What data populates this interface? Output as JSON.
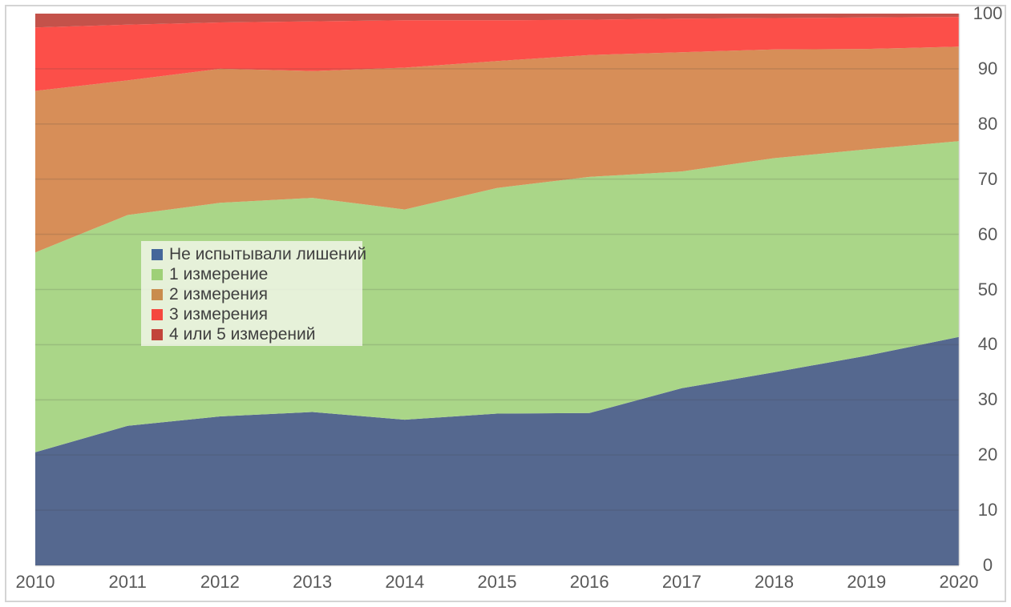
{
  "chart_data": {
    "type": "area",
    "stacked": true,
    "title": "",
    "xlabel": "",
    "ylabel": "",
    "x": [
      2010,
      2011,
      2012,
      2013,
      2014,
      2015,
      2016,
      2017,
      2018,
      2019,
      2020
    ],
    "x_tick_labels": [
      "2010",
      "2011",
      "2012",
      "2013",
      "2014",
      "2015",
      "2016",
      "2017",
      "2018",
      "2019",
      "2020"
    ],
    "y_ticks": [
      0,
      10,
      20,
      30,
      40,
      50,
      60,
      70,
      80,
      90,
      100
    ],
    "ylim": [
      0,
      100
    ],
    "grid": true,
    "legend_position": "inside-upper-left",
    "series": [
      {
        "name": "Не испытывали лишений",
        "fill_color": "#55688f",
        "swatch_color": "#44679a",
        "values": [
          20.5,
          25.3,
          27.0,
          27.8,
          26.4,
          27.5,
          27.6,
          32.1,
          35.0,
          38.0,
          41.4
        ]
      },
      {
        "name": "1 измерение",
        "fill_color": "#aad688",
        "swatch_color": "#9ed077",
        "values": [
          36.2,
          38.2,
          38.7,
          38.8,
          38.1,
          40.9,
          42.8,
          39.3,
          38.8,
          37.4,
          35.5
        ]
      },
      {
        "name": "2 измерения",
        "fill_color": "#d78e58",
        "swatch_color": "#c98c4d",
        "values": [
          29.3,
          24.4,
          24.3,
          23.0,
          25.7,
          23.0,
          22.1,
          21.6,
          19.7,
          18.2,
          17.1
        ]
      },
      {
        "name": "3 измерения",
        "fill_color": "#fc4f49",
        "swatch_color": "#f5483e",
        "values": [
          11.5,
          10.1,
          8.4,
          9.0,
          8.6,
          7.4,
          6.4,
          6.1,
          5.7,
          5.7,
          5.4
        ]
      },
      {
        "name": "4 или 5 измерений",
        "fill_color": "#c4524a",
        "swatch_color": "#c2453b",
        "values": [
          2.5,
          2.0,
          1.6,
          1.4,
          1.2,
          1.2,
          1.1,
          0.9,
          0.8,
          0.7,
          0.6
        ]
      }
    ]
  },
  "colors": {
    "background": "#ffffff",
    "frame_border": "#d4d4d4",
    "gridline_overlay": "rgba(70,70,70,0.16)",
    "axis_line": "#d9d9d9",
    "tick_label": "#595959",
    "legend_text": "#3f3f3f",
    "legend_bg": "rgba(243,246,236,0.82)"
  }
}
